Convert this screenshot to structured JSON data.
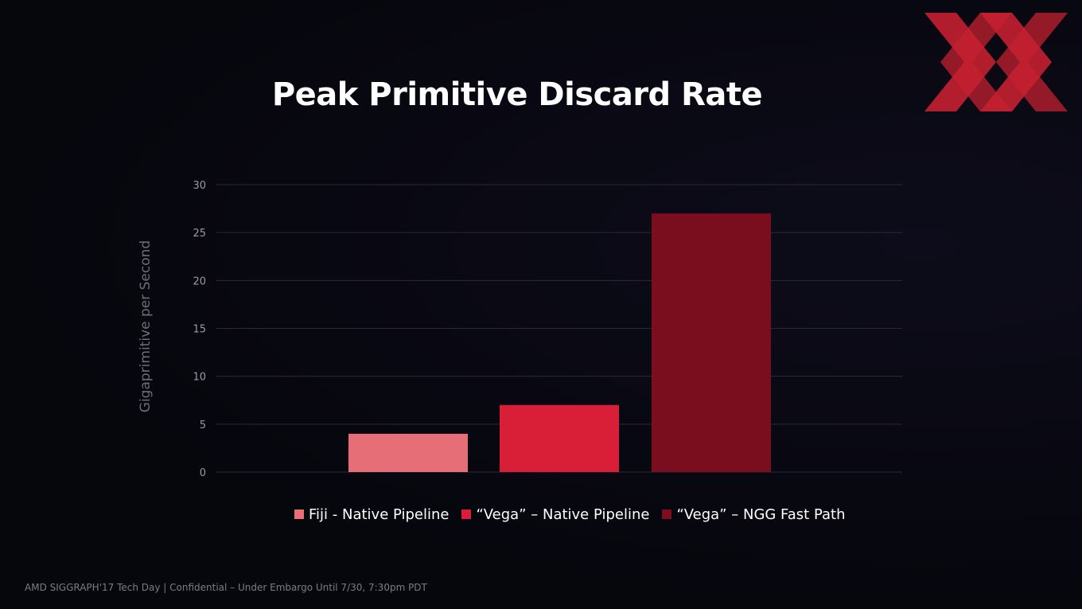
{
  "slide": {
    "title": "Peak Primitive Discard Rate",
    "footer": "AMD SIGGRAPH'17 Tech Day | Confidential – Under Embargo Until 7/30, 7:30pm PDT",
    "logo_icon": "red-crossed-chevrons-logo",
    "logo_color": "#c42030"
  },
  "chart_data": {
    "type": "bar",
    "title": "Peak Primitive Discard Rate",
    "xlabel": "",
    "ylabel": "Gigaprimitive per Second",
    "ylim": [
      0,
      30
    ],
    "yticks": [
      "0",
      "5",
      "10",
      "15",
      "20",
      "25",
      "30"
    ],
    "grid": true,
    "legend_placement": "bottom",
    "categories": [
      "Fiji - Native Pipeline",
      "“Vega” – Native Pipeline",
      "“Vega” – NGG Fast Path"
    ],
    "values": [
      4,
      7,
      27
    ],
    "colors": [
      "#e66f77",
      "#d91f37",
      "#7a0d1e"
    ]
  }
}
